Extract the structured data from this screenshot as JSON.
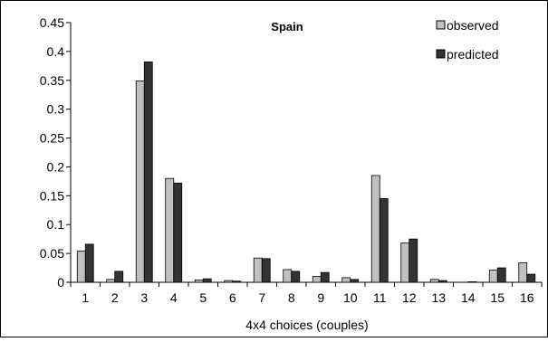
{
  "chart_data": {
    "type": "bar",
    "title": "Spain",
    "xlabel": "4x4 choices (couples)",
    "ylabel": "",
    "ylim": [
      0,
      0.45
    ],
    "yticks": [
      "0",
      "0.05",
      "0.1",
      "0.15",
      "0.2",
      "0.25",
      "0.3",
      "0.35",
      "0.4",
      "0.45"
    ],
    "categories": [
      "1",
      "2",
      "3",
      "4",
      "5",
      "6",
      "7",
      "8",
      "9",
      "10",
      "11",
      "12",
      "13",
      "14",
      "15",
      "16"
    ],
    "series": [
      {
        "name": "observed",
        "color": "#c0c0c0",
        "values": [
          0.054,
          0.005,
          0.349,
          0.18,
          0.004,
          0.003,
          0.042,
          0.022,
          0.01,
          0.008,
          0.185,
          0.068,
          0.005,
          0.0,
          0.021,
          0.034
        ]
      },
      {
        "name": "predicted",
        "color": "#333333",
        "values": [
          0.066,
          0.019,
          0.382,
          0.172,
          0.006,
          0.002,
          0.041,
          0.019,
          0.017,
          0.005,
          0.145,
          0.075,
          0.003,
          0.001,
          0.025,
          0.014
        ]
      }
    ],
    "grid": false,
    "legend_position": "top-right"
  }
}
